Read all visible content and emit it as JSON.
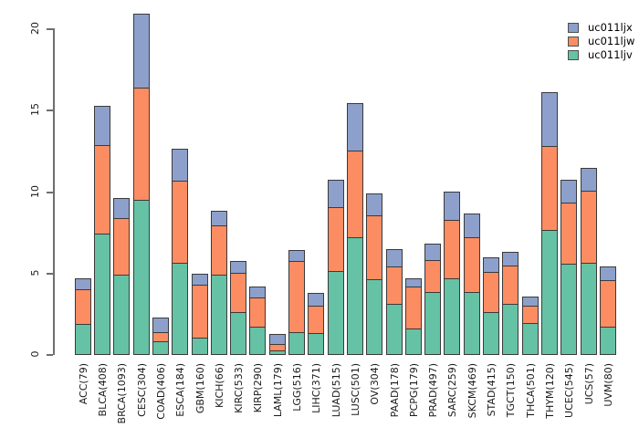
{
  "chart_data": {
    "type": "bar",
    "stacked": true,
    "title": "",
    "xlabel": "",
    "ylabel": "",
    "grid": "off",
    "legend_position": "top-right",
    "yticks": [
      0,
      5,
      10,
      15,
      20
    ],
    "ylim": [
      0,
      21
    ],
    "axis_color": "#6e6e6e",
    "bar_border_color": "#3a3a3a",
    "categories": [
      "ACC(79)",
      "BLCA(408)",
      "BRCA(1093)",
      "CESC(304)",
      "COAD(406)",
      "ESCA(184)",
      "GBM(160)",
      "KICH(66)",
      "KIRC(533)",
      "KIRP(290)",
      "LAML(179)",
      "LGG(516)",
      "LIHC(371)",
      "LUAD(515)",
      "LUSC(501)",
      "OV(304)",
      "PAAD(178)",
      "PCPG(179)",
      "PRAD(497)",
      "SARC(259)",
      "SKCM(469)",
      "STAD(415)",
      "TGCT(150)",
      "THCA(501)",
      "THYM(120)",
      "UCEC(545)",
      "UCS(57)",
      "UVM(80)"
    ],
    "series": [
      {
        "name": "uc011ljx",
        "color": "#8da0cb",
        "stack_position": "top",
        "values": [
          0.7,
          2.4,
          1.2,
          4.5,
          0.85,
          2.0,
          0.65,
          0.9,
          0.75,
          0.65,
          0.6,
          0.65,
          0.8,
          1.7,
          2.95,
          1.35,
          1.05,
          0.5,
          1.0,
          1.75,
          1.45,
          0.9,
          0.85,
          0.55,
          3.3,
          1.45,
          1.4,
          0.85
        ]
      },
      {
        "name": "uc011ljw",
        "color": "#fc8d62",
        "stack_position": "middle",
        "values": [
          2.1,
          5.4,
          3.5,
          6.9,
          0.6,
          5.0,
          3.25,
          3.0,
          2.4,
          1.8,
          0.4,
          4.4,
          1.7,
          3.9,
          5.3,
          3.95,
          2.3,
          2.6,
          1.95,
          3.6,
          3.35,
          2.45,
          2.35,
          1.05,
          5.15,
          3.7,
          4.4,
          2.85
        ]
      },
      {
        "name": "uc011ljv",
        "color": "#66c2a5",
        "stack_position": "bottom",
        "values": [
          1.9,
          7.45,
          4.9,
          9.5,
          0.8,
          5.65,
          1.05,
          4.9,
          2.6,
          1.7,
          0.25,
          1.35,
          1.3,
          5.15,
          7.2,
          4.6,
          3.1,
          1.6,
          3.85,
          4.65,
          3.85,
          2.6,
          3.1,
          1.95,
          7.65,
          5.6,
          5.65,
          1.7
        ]
      }
    ]
  }
}
